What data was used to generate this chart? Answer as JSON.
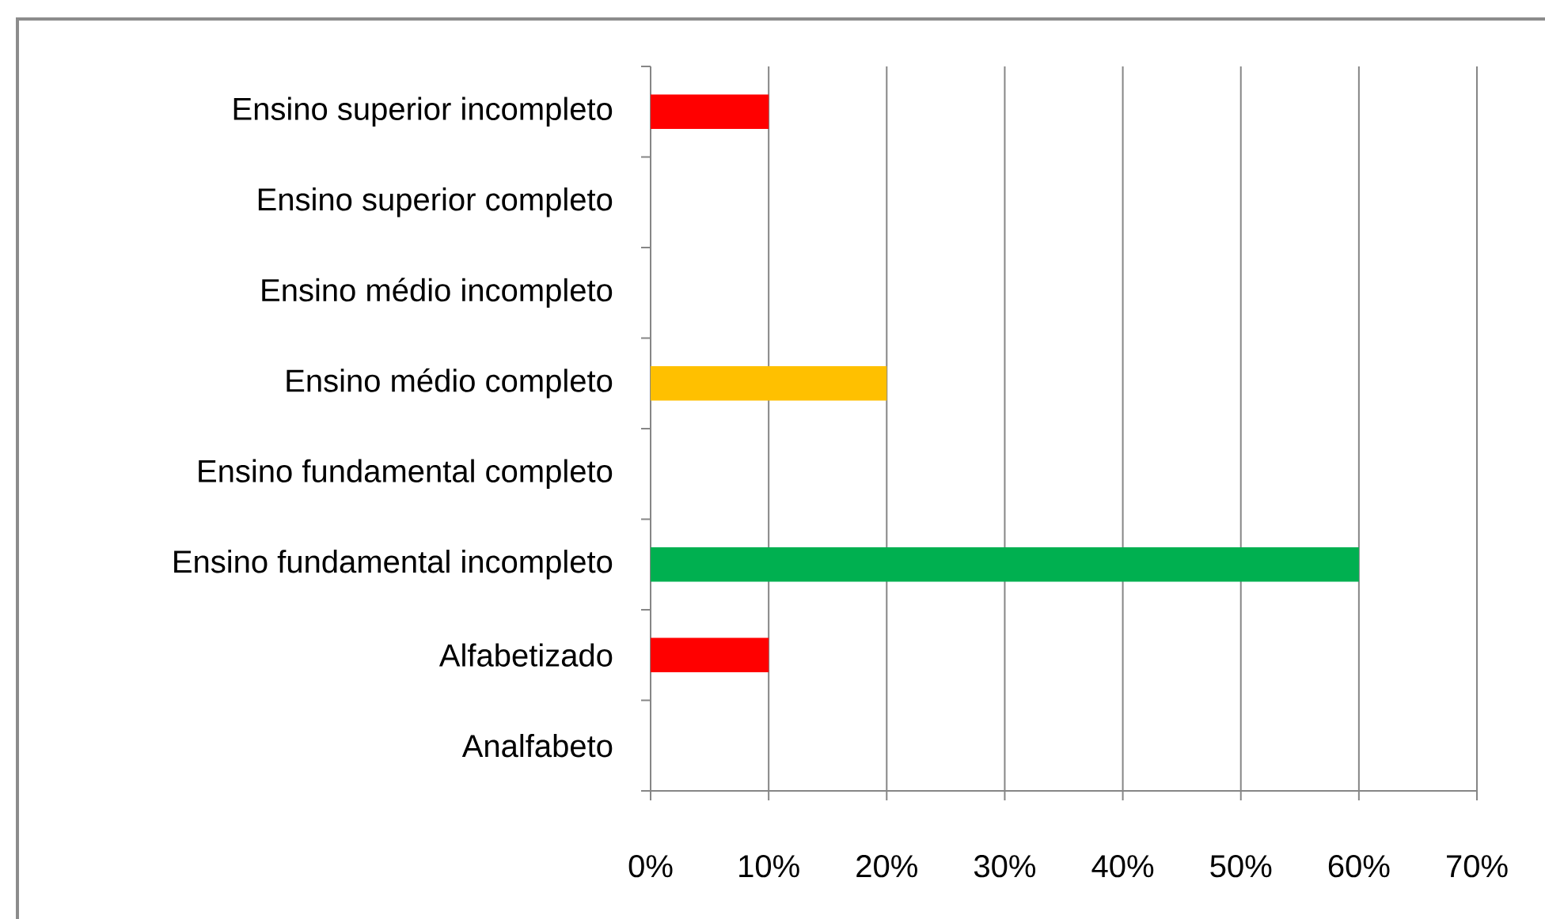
{
  "chart_data": {
    "type": "bar",
    "orientation": "horizontal",
    "categories": [
      "Ensino superior incompleto",
      "Ensino superior completo",
      "Ensino médio incompleto",
      "Ensino médio completo",
      "Ensino fundamental completo",
      "Ensino fundamental incompleto",
      "Alfabetizado",
      "Analfabeto"
    ],
    "values": [
      10,
      0,
      0,
      20,
      0,
      60,
      10,
      0
    ],
    "colors": [
      "#ff0000",
      "#ff0000",
      "#ffc000",
      "#ffc000",
      "#00b050",
      "#00b050",
      "#ff0000",
      "#ff0000"
    ],
    "xlim": [
      0,
      70
    ],
    "xticks": [
      {
        "value": 0,
        "label": "0%"
      },
      {
        "value": 10,
        "label": "10%"
      },
      {
        "value": 20,
        "label": "20%"
      },
      {
        "value": 30,
        "label": "30%"
      },
      {
        "value": 40,
        "label": "40%"
      },
      {
        "value": 50,
        "label": "50%"
      },
      {
        "value": 60,
        "label": "60%"
      },
      {
        "value": 70,
        "label": "70%"
      }
    ],
    "grid": "x"
  }
}
